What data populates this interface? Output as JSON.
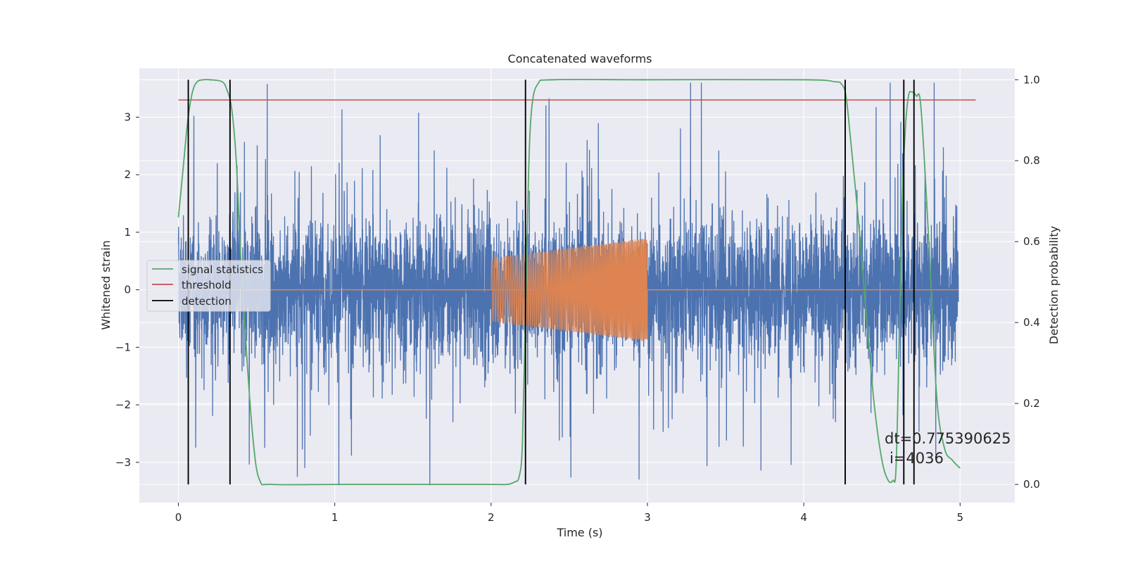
{
  "chart_data": {
    "type": "line",
    "title": "Concatenated waveforms",
    "xlabel": "Time (s)",
    "ylabel": "Whitened strain",
    "y2label": "Detection probability",
    "xlim": [
      -0.25,
      5.35
    ],
    "ylim": [
      -3.7,
      3.85
    ],
    "y2lim": [
      -0.045,
      1.0283
    ],
    "x_ticks": [
      0,
      1,
      2,
      3,
      4,
      5
    ],
    "y_ticks": [
      -3,
      -2,
      -1,
      0,
      1,
      2,
      3
    ],
    "y2_ticks": [
      0.0,
      0.2,
      0.4,
      0.6,
      0.8,
      1.0
    ],
    "grid": true,
    "legend_position": "center-left",
    "legend": [
      "signal statistics",
      "threshold",
      "detection"
    ],
    "colors": {
      "noise": "#4c72b0",
      "injection": "#dd8452",
      "signal_statistics": "#55a868",
      "threshold": "#c44e52",
      "detection": "#000000",
      "background": "#eaeaf2",
      "grid": "#ffffff"
    },
    "series": [
      {
        "name": "whitened strain (noise)",
        "axis": "left",
        "x_range": [
          0,
          4.99
        ],
        "band": [
          -0.8,
          0.8
        ],
        "peak_range": [
          -3.4,
          3.6
        ]
      },
      {
        "name": "injected waveform",
        "axis": "left",
        "x_range": [
          2.0,
          3.0
        ],
        "amplitude": [
          0.55,
          0.9
        ],
        "zero_line_x": [
          0,
          4.99
        ]
      },
      {
        "name": "signal statistics",
        "axis": "right",
        "x": [
          0.0,
          0.03,
          0.06,
          0.09,
          0.12,
          0.16,
          0.2,
          0.28,
          0.31,
          0.34,
          0.37,
          0.4,
          0.44,
          0.48,
          0.52,
          0.6,
          1.0,
          1.5,
          2.0,
          2.1,
          2.15,
          2.18,
          2.2,
          2.22,
          2.24,
          2.26,
          2.3,
          2.4,
          3.0,
          4.0,
          4.2,
          4.24,
          4.27,
          4.3,
          4.35,
          4.4,
          4.45,
          4.5,
          4.54,
          4.57,
          4.59,
          4.61,
          4.63,
          4.65,
          4.67,
          4.69,
          4.72,
          4.75,
          4.8,
          4.85,
          4.9,
          4.95,
          5.0
        ],
        "y": [
          0.66,
          0.78,
          0.9,
          0.97,
          0.995,
          1.0,
          1.0,
          0.995,
          0.975,
          0.93,
          0.8,
          0.55,
          0.3,
          0.1,
          0.01,
          0.0,
          0.0,
          0.0,
          0.0,
          0.0,
          0.006,
          0.02,
          0.1,
          0.42,
          0.77,
          0.93,
          0.99,
          1.0,
          1.0,
          1.0,
          0.995,
          0.99,
          0.96,
          0.85,
          0.65,
          0.42,
          0.2,
          0.06,
          0.01,
          0.01,
          0.04,
          0.35,
          0.7,
          0.88,
          0.96,
          0.97,
          0.96,
          0.93,
          0.6,
          0.22,
          0.09,
          0.06,
          0.04
        ]
      },
      {
        "name": "threshold",
        "axis": "right",
        "x": [
          0,
          5.1
        ],
        "y": [
          0.95,
          0.95
        ]
      },
      {
        "name": "detection",
        "axis": "right",
        "x": [
          0.063,
          0.33,
          2.22,
          4.265,
          4.64,
          4.705
        ],
        "y_range": [
          0.0,
          1.0
        ]
      }
    ],
    "annotations": [
      "dt=0.775390625",
      "i=4036"
    ]
  }
}
